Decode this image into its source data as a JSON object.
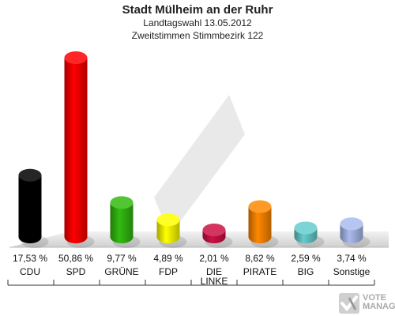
{
  "header": {
    "title": "Stadt Mülheim an der Ruhr",
    "subtitle": "Landtagswahl 13.05.2012",
    "subtitle2": "Zweitstimmen Stimmbezirk 122"
  },
  "logo": {
    "text_line1": "VOTE",
    "text_line2": "MANAGER"
  },
  "chart_data": {
    "type": "bar",
    "title": "Stadt Mülheim an der Ruhr",
    "subtitle": "Landtagswahl 13.05.2012 — Zweitstimmen Stimmbezirk 122",
    "categories": [
      "CDU",
      "SPD",
      "GRÜNE",
      "FDP",
      "DIE LINKE",
      "PIRATE",
      "BIG",
      "Sonstige"
    ],
    "category_lines": [
      [
        "CDU"
      ],
      [
        "SPD"
      ],
      [
        "GRÜNE"
      ],
      [
        "FDP"
      ],
      [
        "DIE",
        "LINKE"
      ],
      [
        "PIRATE"
      ],
      [
        "BIG"
      ],
      [
        "Sonstige"
      ]
    ],
    "values": [
      17.53,
      50.86,
      9.77,
      4.89,
      2.01,
      8.62,
      2.59,
      3.74
    ],
    "value_labels": [
      "17,53 %",
      "50,86 %",
      "9,77 %",
      "4,89 %",
      "2,01 %",
      "8,62 %",
      "2,59 %",
      "3,74 %"
    ],
    "colors": [
      "#000000",
      "#ff0000",
      "#33bb11",
      "#ffff00",
      "#cc1144",
      "#ff8800",
      "#66cccc",
      "#aabbee"
    ],
    "ylim": [
      0,
      50.86
    ],
    "grid": false,
    "legend": "none"
  }
}
